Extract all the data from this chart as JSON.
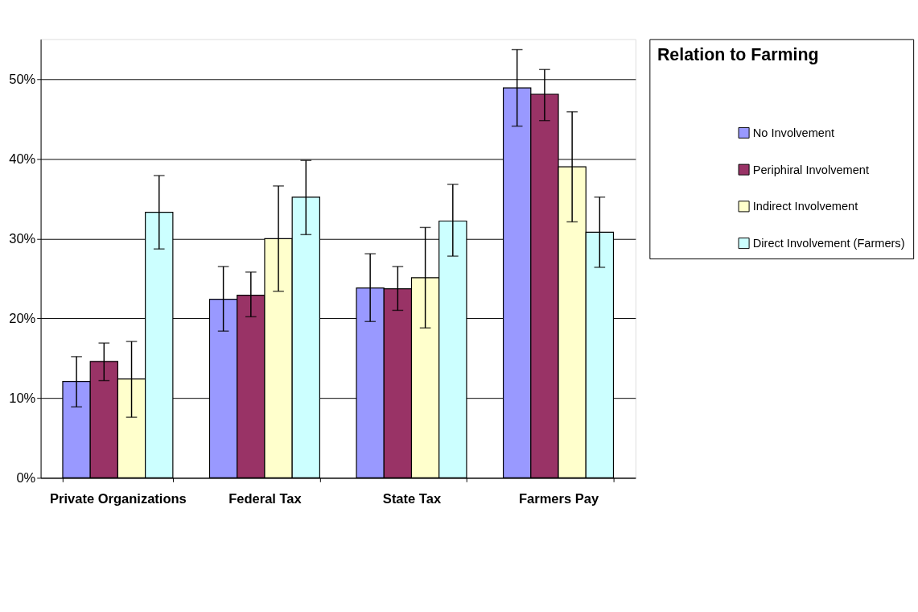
{
  "chart_data": {
    "type": "bar",
    "categories": [
      "Private Organizations",
      "Federal Tax",
      "State Tax",
      "Farmers Pay"
    ],
    "legend_title": "Relation to Farming",
    "series": [
      {
        "name": "No Involvement",
        "color": "#9999ff",
        "values": [
          12.1,
          22.4,
          23.8,
          48.9
        ],
        "errors": [
          [
            8.9,
            15.2
          ],
          [
            18.4,
            26.5
          ],
          [
            19.6,
            28.1
          ],
          [
            44.1,
            53.7
          ]
        ]
      },
      {
        "name": "Periphiral Involvement",
        "color": "#993366",
        "values": [
          14.6,
          22.9,
          23.7,
          48.1
        ],
        "errors": [
          [
            12.2,
            16.9
          ],
          [
            20.2,
            25.8
          ],
          [
            21.0,
            26.5
          ],
          [
            44.8,
            51.2
          ]
        ]
      },
      {
        "name": "Indirect Involvement",
        "color": "#ffffcc",
        "values": [
          12.4,
          30.0,
          25.1,
          39.0
        ],
        "errors": [
          [
            7.6,
            17.1
          ],
          [
            23.4,
            36.6
          ],
          [
            18.8,
            31.4
          ],
          [
            32.1,
            45.9
          ]
        ]
      },
      {
        "name": "Direct Involvement (Farmers)",
        "color": "#ccffff",
        "values": [
          33.3,
          35.2,
          32.2,
          30.8
        ],
        "errors": [
          [
            28.7,
            37.9
          ],
          [
            30.5,
            39.8
          ],
          [
            27.8,
            36.8
          ],
          [
            26.4,
            35.2
          ]
        ]
      }
    ],
    "ylim": [
      0,
      55
    ],
    "yticks": [
      {
        "value": 0,
        "label": "0%"
      },
      {
        "value": 10,
        "label": "10%"
      },
      {
        "value": 20,
        "label": "20%"
      },
      {
        "value": 30,
        "label": "30%"
      },
      {
        "value": 40,
        "label": "40%"
      },
      {
        "value": 50,
        "label": "50%"
      }
    ],
    "grid": "y",
    "legend": "right"
  }
}
